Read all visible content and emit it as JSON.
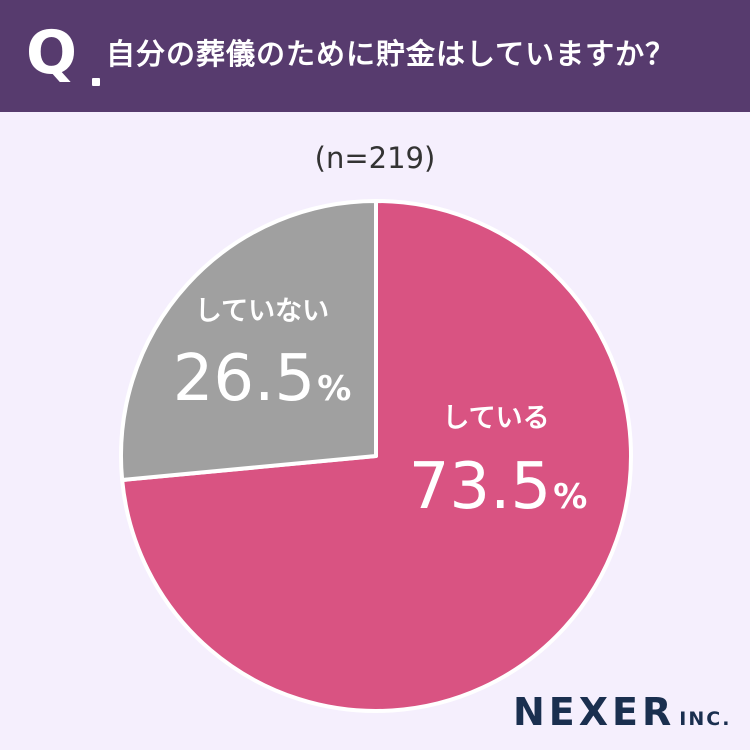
{
  "header": {
    "q_mark": "Q",
    "question": "自分の葬儀のために貯金はしていますか？"
  },
  "sample_size": "(n=219)",
  "chart_data": {
    "type": "pie",
    "title": "自分の葬儀のために貯金はしていますか？",
    "slices": [
      {
        "label": "している",
        "value": 73.5,
        "display": "73.5",
        "color": "#d95382"
      },
      {
        "label": "していない",
        "value": 26.5,
        "display": "26.5",
        "color": "#a0a0a0"
      }
    ],
    "unit": "%",
    "start_angle_deg": 0,
    "direction": "clockwise"
  },
  "logo": {
    "main": "NEXER",
    "sub": "INC."
  },
  "colors": {
    "header_bg": "#573b6e",
    "page_bg": "#f5effd",
    "logo": "#1a2f4f"
  }
}
